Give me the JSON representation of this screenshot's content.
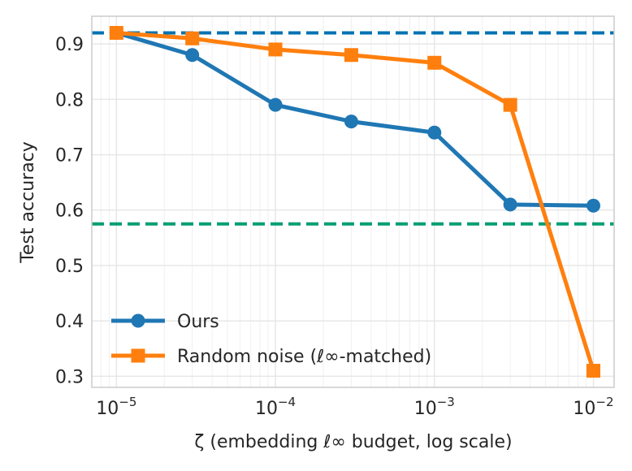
{
  "chart_data": {
    "type": "line",
    "xscale": "log",
    "xlabel": "ζ (embedding ℓ∞ budget, log scale)",
    "ylabel": "Test accuracy",
    "xlim": [
      7e-06,
      0.0135
    ],
    "ylim": [
      0.28,
      0.95
    ],
    "x_ticks": [
      {
        "value": 1e-05,
        "base": "10",
        "exp": "−5"
      },
      {
        "value": 0.0001,
        "base": "10",
        "exp": "−4"
      },
      {
        "value": 0.001,
        "base": "10",
        "exp": "−3"
      },
      {
        "value": 0.01,
        "base": "10",
        "exp": "−2"
      }
    ],
    "y_ticks": [
      {
        "value": 0.3,
        "label": "0.3"
      },
      {
        "value": 0.4,
        "label": "0.4"
      },
      {
        "value": 0.5,
        "label": "0.5"
      },
      {
        "value": 0.6,
        "label": "0.6"
      },
      {
        "value": 0.7,
        "label": "0.7"
      },
      {
        "value": 0.8,
        "label": "0.8"
      },
      {
        "value": 0.9,
        "label": "0.9"
      }
    ],
    "x": [
      1e-05,
      3e-05,
      0.0001,
      0.0003,
      0.001,
      0.003,
      0.01
    ],
    "series": [
      {
        "name": "Ours",
        "color": "#1f77b4",
        "marker": "circle",
        "values": [
          0.92,
          0.88,
          0.79,
          0.76,
          0.74,
          0.61,
          0.608
        ]
      },
      {
        "name": "Random noise (ℓ∞-matched)",
        "color": "#ff7f0e",
        "marker": "square",
        "values": [
          0.92,
          0.91,
          0.89,
          0.88,
          0.866,
          0.79,
          0.31
        ]
      }
    ],
    "reference_lines": [
      {
        "y": 0.92,
        "color": "#0072b2",
        "style": "dashed"
      },
      {
        "y": 0.575,
        "color": "#009e73",
        "style": "dashed"
      }
    ],
    "grid": true,
    "legend_position": "lower-left"
  }
}
